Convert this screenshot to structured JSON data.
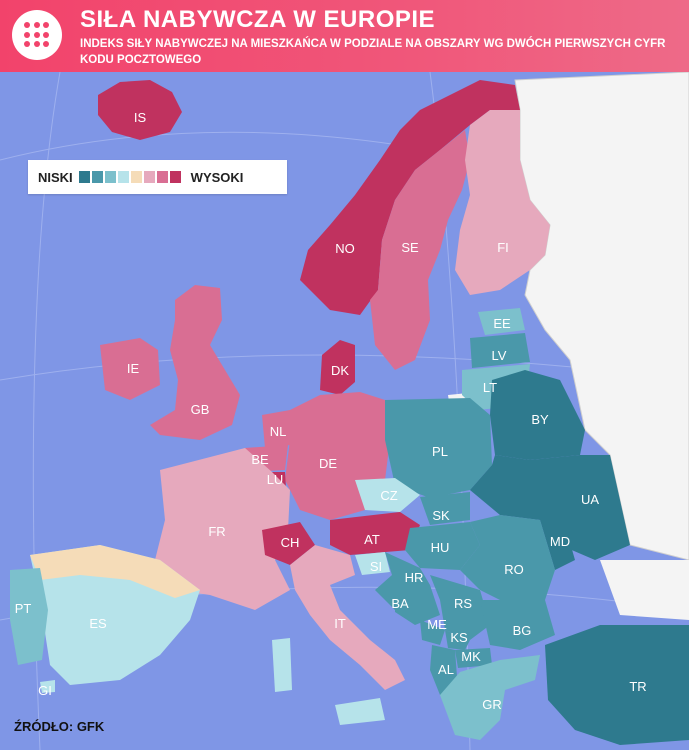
{
  "header": {
    "title": "SIŁA NABYWCZA W EUROPIE",
    "subtitle": "INDEKS SIŁY NABYWCZEJ NA MIESZKAŃCA W PODZIALE NA OBSZARY WG DWÓCH PIERWSZYCH CYFR KODU POCZTOWEGO"
  },
  "legend": {
    "low_label": "NISKI",
    "high_label": "WYSOKI",
    "colors": [
      "#2e7a8e",
      "#4a98aa",
      "#7cc0cc",
      "#b6e3ea",
      "#f5dcb8",
      "#e6a9bd",
      "#d96e93",
      "#c0325f"
    ]
  },
  "source": "ŹRÓDŁO: GFK",
  "colors": {
    "sea": "#7f96e6",
    "no_data": "#f4f4f4",
    "header": "#f2436b"
  },
  "countries": [
    {
      "code": "IS",
      "level": 7
    },
    {
      "code": "NO",
      "level": 7
    },
    {
      "code": "SE",
      "level": 6
    },
    {
      "code": "FI",
      "level": 5
    },
    {
      "code": "EE",
      "level": 3
    },
    {
      "code": "LV",
      "level": 2
    },
    {
      "code": "LT",
      "level": 3
    },
    {
      "code": "IE",
      "level": 6
    },
    {
      "code": "GB",
      "level": 6
    },
    {
      "code": "DK",
      "level": 7
    },
    {
      "code": "NL",
      "level": 6
    },
    {
      "code": "BE",
      "level": 6
    },
    {
      "code": "LU",
      "level": 7
    },
    {
      "code": "DE",
      "level": 6
    },
    {
      "code": "PL",
      "level": 2
    },
    {
      "code": "BY",
      "level": 0
    },
    {
      "code": "FR",
      "level": 5
    },
    {
      "code": "CZ",
      "level": 3
    },
    {
      "code": "SK",
      "level": 2
    },
    {
      "code": "UA",
      "level": 0
    },
    {
      "code": "CH",
      "level": 7
    },
    {
      "code": "AT",
      "level": 7
    },
    {
      "code": "HU",
      "level": 2
    },
    {
      "code": "MD",
      "level": 0
    },
    {
      "code": "SI",
      "level": 3
    },
    {
      "code": "HR",
      "level": 2
    },
    {
      "code": "RO",
      "level": 1
    },
    {
      "code": "BA",
      "level": 1
    },
    {
      "code": "RS",
      "level": 1
    },
    {
      "code": "PT",
      "level": 3
    },
    {
      "code": "ES",
      "level": 3
    },
    {
      "code": "IT",
      "level": 5
    },
    {
      "code": "ME",
      "level": 1
    },
    {
      "code": "KS",
      "level": 1
    },
    {
      "code": "BG",
      "level": 1
    },
    {
      "code": "MK",
      "level": 1
    },
    {
      "code": "AL",
      "level": 1
    },
    {
      "code": "TR",
      "level": 0
    },
    {
      "code": "GR",
      "level": 3
    },
    {
      "code": "GI",
      "level": 3
    }
  ]
}
